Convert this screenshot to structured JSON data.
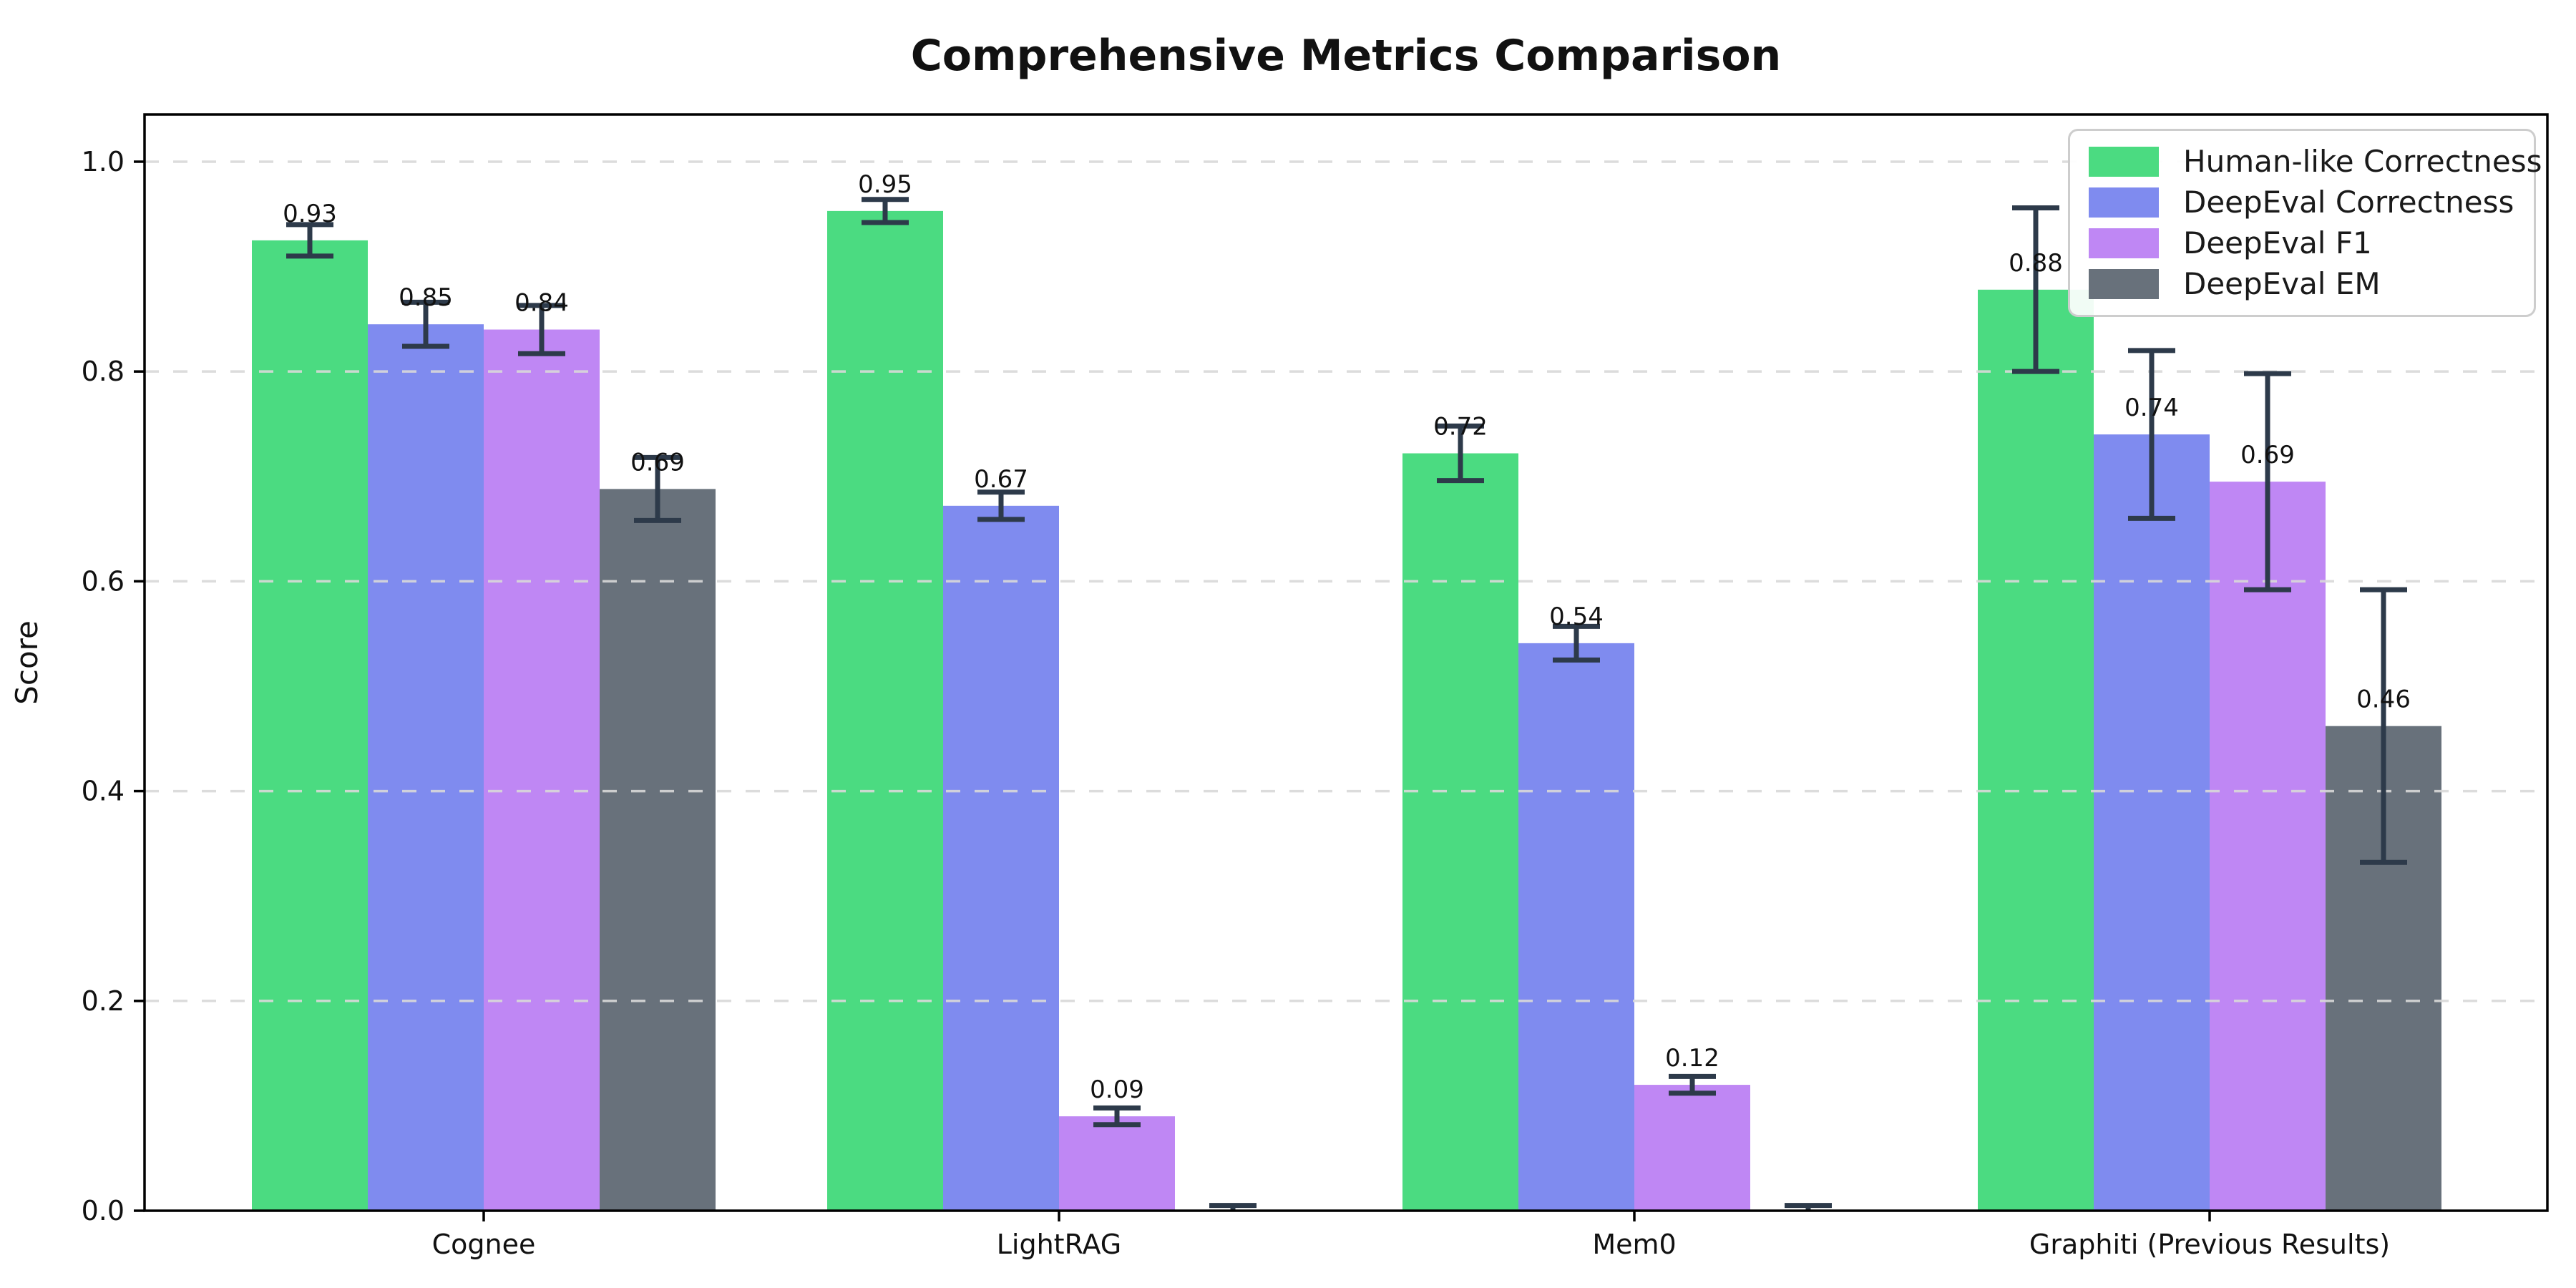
{
  "chart_data": {
    "type": "bar",
    "title": "Comprehensive Metrics Comparison",
    "ylabel": "Score",
    "categories": [
      "Cognee",
      "LightRAG",
      "Mem0",
      "Graphiti (Previous Results)"
    ],
    "series": [
      {
        "name": "Human-like Correctness",
        "color": "#4bdb81",
        "values": [
          0.925,
          0.953,
          0.722,
          0.878
        ],
        "errors": [
          0.015,
          0.011,
          0.026,
          0.078
        ],
        "labels": [
          "0.93",
          "0.95",
          "0.72",
          "0.88"
        ]
      },
      {
        "name": "DeepEval Correctness",
        "color": "#7f8bef",
        "values": [
          0.845,
          0.672,
          0.541,
          0.74
        ],
        "errors": [
          0.021,
          0.013,
          0.016,
          0.08
        ],
        "labels": [
          "0.85",
          "0.67",
          "0.54",
          "0.74"
        ]
      },
      {
        "name": "DeepEval F1",
        "color": "#bf87f4",
        "values": [
          0.84,
          0.09,
          0.12,
          0.695
        ],
        "errors": [
          0.023,
          0.008,
          0.008,
          0.103
        ],
        "labels": [
          "0.84",
          "0.09",
          "0.12",
          "0.69"
        ]
      },
      {
        "name": "DeepEval EM",
        "color": "#68717b",
        "values": [
          0.688,
          0.0,
          0.0,
          0.462
        ],
        "errors": [
          0.03,
          0.005,
          0.005,
          0.13
        ],
        "labels": [
          "0.69",
          "",
          "",
          "0.46"
        ]
      }
    ],
    "ytick_labels": [
      "0.0",
      "0.2",
      "0.4",
      "0.6",
      "0.8",
      "1.0"
    ],
    "ytick_values": [
      0.0,
      0.2,
      0.4,
      0.6,
      0.8,
      1.0
    ],
    "ylim": [
      0,
      1.045
    ],
    "grid": "horizontal-dashed",
    "legend_position": "upper-right",
    "colors": {
      "error_bar": "#2d3a4a",
      "grid": "#d9d9d9",
      "axis": "#000000",
      "value_text": "#111111",
      "tick_text": "#111111",
      "background": "#ffffff"
    }
  }
}
